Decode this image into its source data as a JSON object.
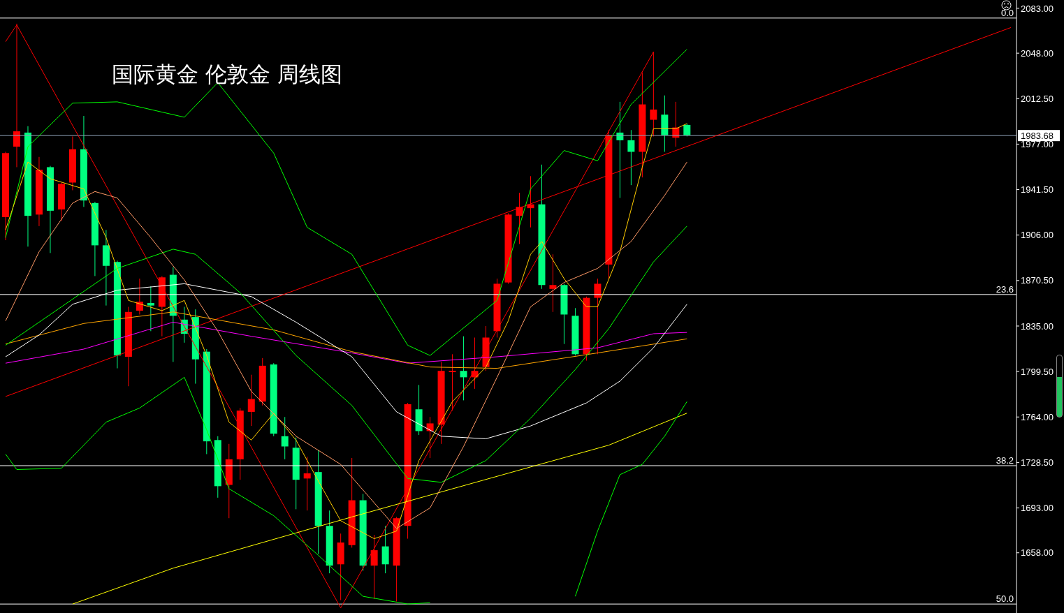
{
  "chart_data": {
    "type": "candlestick",
    "title": "国际黄金 伦敦金 周线图",
    "tick_labels": "y",
    "categories": [
      null,
      null,
      null,
      null,
      null,
      null,
      null,
      null,
      null,
      null,
      null,
      null,
      null,
      null,
      null,
      null,
      null,
      null,
      null,
      null,
      null,
      null,
      null,
      null,
      null,
      null,
      null,
      null,
      null,
      null,
      null,
      null,
      null,
      null,
      null,
      null,
      null,
      null,
      null,
      null,
      null,
      null,
      null,
      null,
      null,
      null,
      null,
      null,
      null,
      null,
      null,
      null,
      null,
      null,
      null,
      null,
      null,
      null,
      null,
      null,
      null,
      null,
      null,
      null,
      null,
      null,
      null,
      null,
      null,
      null,
      null,
      null,
      null,
      null,
      null,
      null,
      null,
      null,
      null,
      null,
      null,
      null,
      null,
      null,
      null,
      null,
      null,
      null,
      null,
      null,
      null
    ],
    "ohlc": [
      [
        1920,
        1971,
        1902,
        1970
      ],
      [
        1975,
        2071,
        1959,
        1987
      ],
      [
        1986,
        1991,
        1897,
        1921
      ],
      [
        1922,
        1967,
        1913,
        1957
      ],
      [
        1959,
        1960,
        1892,
        1925
      ],
      [
        1926,
        1947,
        1917,
        1946
      ],
      [
        1947,
        1983,
        1941,
        1973
      ],
      [
        1973,
        1999,
        1928,
        1933
      ],
      [
        1931,
        1932,
        1874,
        1898
      ],
      [
        1898,
        1910,
        1851,
        1882
      ],
      [
        1885,
        1886,
        1802,
        1812
      ],
      [
        1811,
        1850,
        1788,
        1846
      ],
      [
        1847,
        1872,
        1844,
        1854
      ],
      [
        1853,
        1866,
        1831,
        1851
      ],
      [
        1850,
        1874,
        1827,
        1873
      ],
      [
        1875,
        1881,
        1807,
        1843
      ],
      [
        1840,
        1850,
        1822,
        1829
      ],
      [
        1842,
        1848,
        1790,
        1809
      ],
      [
        1815,
        1817,
        1735,
        1745
      ],
      [
        1746,
        1749,
        1701,
        1710
      ],
      [
        1711,
        1743,
        1685,
        1731
      ],
      [
        1731,
        1771,
        1715,
        1769
      ],
      [
        1768,
        1797,
        1757,
        1778
      ],
      [
        1776,
        1810,
        1773,
        1804
      ],
      [
        1805,
        1806,
        1749,
        1751
      ],
      [
        1749,
        1764,
        1731,
        1741
      ],
      [
        1740,
        1748,
        1692,
        1715
      ],
      [
        1716,
        1733,
        1691,
        1720
      ],
      [
        1721,
        1738,
        1657,
        1679
      ],
      [
        1679,
        1691,
        1642,
        1648
      ],
      [
        1649,
        1673,
        1621,
        1666
      ],
      [
        1664,
        1732,
        1662,
        1699
      ],
      [
        1699,
        1704,
        1644,
        1648
      ],
      [
        1648,
        1672,
        1622,
        1660
      ],
      [
        1663,
        1679,
        1642,
        1649
      ],
      [
        1648,
        1686,
        1620,
        1685
      ],
      [
        1679,
        1775,
        1669,
        1774
      ],
      [
        1770,
        1789,
        1750,
        1753
      ],
      [
        1753,
        1764,
        1732,
        1759
      ],
      [
        1758,
        1807,
        1743,
        1800
      ],
      [
        1799,
        1813,
        1769,
        1800
      ],
      [
        1800,
        1827,
        1777,
        1795
      ],
      [
        1795,
        1826,
        1786,
        1800
      ],
      [
        1803,
        1835,
        1800,
        1826
      ],
      [
        1831,
        1872,
        1826,
        1868
      ],
      [
        1869,
        1923,
        1868,
        1922
      ],
      [
        1921,
        1939,
        1899,
        1928
      ],
      [
        1927,
        1952,
        1912,
        1930
      ],
      [
        1930,
        1961,
        1864,
        1867
      ],
      [
        1864,
        1891,
        1846,
        1867
      ],
      [
        1867,
        1868,
        1821,
        1844
      ],
      [
        1843,
        1849,
        1812,
        1813
      ],
      [
        1813,
        1858,
        1808,
        1857
      ],
      [
        1857,
        1872,
        1813,
        1868
      ],
      [
        1883,
        1988,
        1872,
        1984
      ],
      [
        1986,
        2010,
        1935,
        1980
      ],
      [
        1980,
        1988,
        1945,
        1971
      ],
      [
        1971,
        2033,
        1951,
        2008
      ],
      [
        1996,
        2049,
        1983,
        2004
      ],
      [
        2000,
        2015,
        1971,
        1984
      ],
      [
        1982,
        2010,
        1975,
        1990
      ],
      [
        1992,
        1993,
        1983,
        1984
      ],
      null,
      null,
      null,
      null,
      null,
      null,
      null,
      null,
      null,
      null,
      null,
      null,
      null,
      null,
      null,
      null,
      null,
      null,
      null,
      null,
      null,
      null,
      null,
      null,
      null,
      null,
      null,
      null,
      null
    ],
    "colors": [
      "#ff0000",
      "#ff0000",
      "#00ff80",
      "#ff0000",
      "#00ff80",
      "#ff0000",
      "#ff0000",
      "#00ff80",
      "#00ff80",
      "#00ff80",
      "#00ff80",
      "#ff0000",
      "#ff0000",
      "#00ff80",
      "#ff0000",
      "#00ff80",
      "#00ff80",
      "#00ff80",
      "#00ff80",
      "#00ff80",
      "#ff0000",
      "#ff0000",
      "#ff0000",
      "#ff0000",
      "#00ff80",
      "#00ff80",
      "#00ff80",
      "#ff0000",
      "#00ff80",
      "#00ff80",
      "#ff0000",
      "#ff0000",
      "#00ff80",
      "#ff0000",
      "#00ff80",
      "#ff0000",
      "#ff0000",
      "#00ff80",
      "#ff0000",
      "#ff0000",
      "#ff0000",
      "#00ff80",
      "#ff0000",
      "#ff0000",
      "#ff0000",
      "#ff0000",
      "#ff0000",
      "#ff0000",
      "#00ff80",
      "#ff0000",
      "#00ff80",
      "#00ff80",
      "#ff0000",
      "#ff0000",
      "#ff0000",
      "#00ff80",
      "#00ff80",
      "#ff0000",
      "#ff0000",
      "#00ff80",
      "#ff0000",
      "#00ff80",
      null,
      null,
      null,
      null,
      null,
      null,
      null,
      null,
      null,
      null,
      null,
      null,
      null,
      null,
      null,
      null,
      null,
      null,
      null,
      null,
      null,
      null,
      null,
      null,
      null,
      null,
      null,
      null,
      null
    ],
    "series": [
      {
        "type": "line",
        "color": "#ff0000",
        "values": [
          2057,
          2070,
          null,
          null,
          null,
          null,
          null,
          null,
          null,
          null,
          null,
          null,
          null,
          null,
          null,
          null,
          null,
          null,
          null,
          null,
          null,
          null,
          null,
          null,
          null,
          null,
          null,
          null,
          null,
          null,
          1615,
          null,
          null,
          null,
          null,
          null,
          null,
          null,
          null,
          null,
          null,
          null,
          null,
          null,
          null,
          null,
          null,
          null,
          null,
          null,
          null,
          null,
          null,
          null,
          null,
          null,
          null,
          null,
          2049,
          null,
          null,
          null,
          null,
          null,
          null,
          null,
          null,
          null,
          null,
          null,
          null,
          null,
          null,
          null,
          null,
          null,
          null,
          null,
          null,
          null,
          null,
          null,
          null,
          null,
          null,
          null,
          null,
          null,
          null,
          null,
          null
        ]
      },
      {
        "type": "line",
        "color": "#ff0000",
        "values": [
          1780,
          null,
          null,
          null,
          null,
          null,
          null,
          null,
          null,
          null,
          null,
          null,
          null,
          null,
          null,
          null,
          null,
          null,
          null,
          null,
          null,
          null,
          null,
          null,
          null,
          null,
          null,
          null,
          null,
          null,
          null,
          null,
          null,
          null,
          null,
          null,
          null,
          null,
          null,
          null,
          null,
          null,
          null,
          null,
          null,
          null,
          null,
          null,
          null,
          null,
          null,
          null,
          null,
          null,
          null,
          null,
          null,
          null,
          null,
          null,
          null,
          null,
          null,
          null,
          null,
          null,
          null,
          null,
          null,
          null,
          null,
          null,
          null,
          null,
          null,
          null,
          null,
          null,
          null,
          null,
          null,
          null,
          null,
          null,
          null,
          null,
          null,
          null,
          null,
          null,
          2068
        ]
      },
      {
        "type": "line",
        "color": "#ffff00",
        "values": [
          null,
          null,
          null,
          null,
          null,
          null,
          1618,
          null,
          null,
          null,
          null,
          null,
          null,
          null,
          null,
          1646,
          null,
          null,
          null,
          null,
          null,
          null,
          null,
          null,
          null,
          null,
          null,
          null,
          null,
          null,
          null,
          1686,
          null,
          null,
          null,
          null,
          null,
          null,
          null,
          null,
          null,
          null,
          null,
          null,
          null,
          null,
          null,
          1725,
          null,
          null,
          null,
          null,
          null,
          null,
          1742,
          null,
          null,
          null,
          null,
          null,
          null,
          1767,
          null,
          null,
          null,
          null,
          null,
          null,
          null,
          null,
          null,
          null,
          null,
          null,
          null,
          null,
          null,
          null,
          null,
          null,
          null,
          null,
          null,
          null,
          null,
          null,
          null,
          null,
          null,
          null,
          null
        ]
      },
      {
        "type": "line",
        "color": "#ff00ff",
        "values": [
          1806,
          null,
          null,
          null,
          null,
          null,
          null,
          1817,
          null,
          null,
          null,
          null,
          null,
          null,
          null,
          1838,
          null,
          null,
          null,
          null,
          null,
          null,
          1827,
          null,
          null,
          null,
          null,
          null,
          null,
          null,
          null,
          1814,
          null,
          null,
          null,
          null,
          1806,
          null,
          null,
          null,
          null,
          null,
          null,
          null,
          1811,
          null,
          null,
          null,
          null,
          null,
          null,
          null,
          null,
          1818,
          null,
          null,
          null,
          null,
          1829,
          null,
          null,
          1830,
          null,
          null,
          null,
          null,
          null,
          null,
          null,
          null,
          null,
          null,
          null,
          null,
          null,
          null,
          null,
          null,
          null,
          null,
          null,
          null,
          null,
          null,
          null,
          null,
          null,
          null,
          null,
          null,
          null
        ]
      },
      {
        "type": "line",
        "color": "#ffa500",
        "values": [
          1821,
          null,
          null,
          null,
          null,
          null,
          null,
          1837,
          null,
          null,
          null,
          null,
          null,
          null,
          null,
          1846,
          null,
          null,
          null,
          null,
          null,
          null,
          null,
          null,
          1832,
          null,
          null,
          null,
          null,
          null,
          null,
          1815,
          null,
          null,
          null,
          null,
          null,
          null,
          1803,
          null,
          null,
          null,
          null,
          null,
          1802,
          null,
          null,
          null,
          null,
          null,
          null,
          null,
          null,
          1814,
          null,
          null,
          null,
          null,
          null,
          null,
          null,
          1825,
          null,
          null,
          null,
          null,
          null,
          null,
          null,
          null,
          null,
          null,
          null,
          null,
          null,
          null,
          null,
          null,
          null,
          null,
          null,
          null,
          null,
          null,
          null,
          null,
          null,
          null,
          null,
          null,
          null
        ]
      },
      {
        "type": "line",
        "color": "#ffffff",
        "values": [
          1811,
          null,
          null,
          1828,
          null,
          null,
          1852,
          null,
          null,
          null,
          1863,
          null,
          null,
          null,
          null,
          null,
          1868,
          null,
          null,
          null,
          null,
          null,
          1858,
          null,
          null,
          null,
          1838,
          null,
          null,
          null,
          null,
          1811,
          null,
          null,
          null,
          1768,
          null,
          null,
          null,
          1749,
          null,
          null,
          null,
          1747,
          null,
          null,
          null,
          1757,
          null,
          null,
          null,
          null,
          1775,
          null,
          null,
          1792,
          null,
          null,
          1818,
          null,
          null,
          1852,
          null,
          null,
          null,
          null,
          null,
          null,
          null,
          null,
          null,
          null,
          null,
          null,
          null,
          null,
          null,
          null,
          null,
          null,
          null,
          null,
          null,
          null,
          null,
          null,
          null,
          null,
          null,
          null,
          null
        ]
      },
      {
        "type": "line",
        "color": "#00ff00",
        "values": [
          1904,
          null,
          1975,
          null,
          null,
          null,
          2009,
          null,
          null,
          null,
          2010,
          null,
          null,
          null,
          null,
          null,
          1998,
          null,
          null,
          2025,
          null,
          null,
          null,
          null,
          1970,
          null,
          null,
          1912,
          null,
          null,
          null,
          1891,
          null,
          null,
          null,
          null,
          1820,
          null,
          1812,
          null,
          null,
          null,
          null,
          null,
          1855,
          null,
          null,
          1942,
          null,
          null,
          1972,
          null,
          null,
          1964,
          null,
          null,
          2008,
          null,
          null,
          null,
          null,
          2051,
          null,
          null,
          null,
          null,
          null,
          null,
          null,
          null,
          null,
          null,
          null,
          null,
          null,
          null,
          null,
          null,
          null,
          null,
          null,
          null,
          null,
          null,
          null,
          null,
          null,
          null,
          null,
          null,
          null
        ]
      },
      {
        "type": "line",
        "color": "#00ff00",
        "values": [
          1820,
          null,
          null,
          null,
          null,
          1850,
          null,
          null,
          null,
          null,
          1880,
          null,
          null,
          null,
          null,
          1895,
          null,
          1891,
          null,
          null,
          null,
          1861,
          null,
          null,
          null,
          null,
          1812,
          null,
          null,
          null,
          null,
          1773,
          null,
          null,
          null,
          null,
          1716,
          null,
          null,
          1713,
          null,
          null,
          null,
          1730,
          null,
          null,
          null,
          1763,
          null,
          null,
          null,
          1801,
          null,
          null,
          1833,
          null,
          null,
          null,
          1885,
          null,
          null,
          1913,
          null,
          null,
          null,
          null,
          null,
          null,
          null,
          null,
          null,
          null,
          null,
          null,
          null,
          null,
          null,
          null,
          null,
          null,
          null,
          null,
          null,
          null,
          null,
          null,
          null,
          null,
          null,
          null,
          null
        ]
      },
      {
        "type": "line",
        "color": "#00ff00",
        "values": [
          1735,
          1723,
          null,
          null,
          null,
          1724,
          null,
          null,
          null,
          1760,
          null,
          null,
          1771,
          null,
          null,
          null,
          1795,
          null,
          1754,
          null,
          1708,
          null,
          null,
          null,
          1687,
          null,
          null,
          null,
          1656,
          null,
          null,
          null,
          1624,
          null,
          null,
          null,
          1618,
          null,
          1619,
          null,
          null,
          null,
          null,
          null,
          null,
          null,
          null,
          null,
          null,
          null,
          null,
          null,
          null,
          null,
          null,
          null,
          null,
          null,
          null,
          null,
          null,
          null,
          null,
          null,
          null,
          null,
          null,
          null,
          null,
          null,
          null,
          null,
          null,
          null,
          null,
          null,
          null,
          null,
          null,
          null,
          null,
          null,
          null,
          null,
          null,
          null,
          null,
          null,
          null,
          null,
          null
        ]
      },
      {
        "type": "line",
        "color": "#00ff00",
        "values": [
          null,
          null,
          null,
          null,
          null,
          null,
          null,
          null,
          null,
          null,
          null,
          null,
          null,
          null,
          null,
          null,
          null,
          null,
          null,
          null,
          null,
          null,
          null,
          null,
          null,
          null,
          null,
          null,
          null,
          null,
          null,
          null,
          null,
          null,
          null,
          null,
          null,
          null,
          null,
          null,
          null,
          null,
          null,
          null,
          null,
          null,
          null,
          null,
          null,
          null,
          null,
          1624,
          null,
          1675,
          null,
          1719,
          null,
          1727,
          null,
          1749,
          null,
          1776,
          null,
          null,
          null,
          null,
          null,
          null,
          null,
          null,
          null,
          null,
          null,
          null,
          null,
          null,
          null,
          null,
          null,
          null,
          null,
          null,
          null,
          null,
          null,
          null,
          null,
          null,
          null,
          null,
          null
        ]
      },
      {
        "type": "line",
        "color": "#ffcc00",
        "values": [
          1910,
          null,
          1963,
          null,
          1950,
          null,
          null,
          1942,
          null,
          1904,
          null,
          1855,
          null,
          null,
          1847,
          null,
          1855,
          null,
          1812,
          null,
          1760,
          null,
          1746,
          null,
          1767,
          null,
          1746,
          null,
          1714,
          null,
          1683,
          null,
          null,
          1669,
          null,
          1675,
          null,
          1730,
          null,
          null,
          1776,
          null,
          null,
          1803,
          null,
          1839,
          null,
          1891,
          1901,
          null,
          1872,
          null,
          1850,
          1850,
          null,
          1893,
          null,
          1959,
          1989,
          null,
          1989,
          1993,
          null,
          null,
          null,
          null,
          null,
          null,
          null,
          null,
          null,
          null,
          null,
          null,
          null,
          null,
          null,
          null,
          null,
          null,
          null,
          null,
          null,
          null,
          null,
          null,
          null,
          null,
          null,
          null,
          null
        ]
      },
      {
        "type": "line",
        "color": "#ff9966",
        "values": [
          1839,
          null,
          null,
          1893,
          null,
          null,
          1931,
          null,
          1940,
          null,
          1935,
          null,
          null,
          1904,
          null,
          null,
          1871,
          null,
          null,
          1831,
          null,
          null,
          1784,
          null,
          null,
          null,
          1749,
          null,
          null,
          null,
          1727,
          null,
          null,
          1697,
          null,
          1677,
          null,
          null,
          1693,
          null,
          null,
          1741,
          null,
          null,
          1795,
          null,
          null,
          1850,
          null,
          null,
          1869,
          null,
          null,
          1880,
          null,
          null,
          1901,
          null,
          null,
          1937,
          null,
          1963,
          null,
          null,
          null,
          null,
          null,
          null,
          null,
          null,
          null,
          null,
          null,
          null,
          null,
          null,
          null,
          null,
          null,
          null,
          null,
          null,
          null,
          null,
          null,
          null,
          null,
          null,
          null,
          null,
          null
        ]
      }
    ],
    "ylim": [
      1611,
      2089.5
    ],
    "yticks": [
      {
        "value": 2083,
        "label": "2083.00"
      },
      {
        "value": 2048,
        "label": "2048.00"
      },
      {
        "value": 2012.5,
        "label": "2012.50"
      },
      {
        "value": 1977,
        "label": "1977.00"
      },
      {
        "value": 1941.5,
        "label": "1941.50"
      },
      {
        "value": 1906,
        "label": "1906.00"
      },
      {
        "value": 1870.5,
        "label": "1870.50"
      },
      {
        "value": 1835,
        "label": "1835.00"
      },
      {
        "value": 1799.5,
        "label": "1799.50"
      },
      {
        "value": 1764,
        "label": "1764.00"
      },
      {
        "value": 1728.5,
        "label": "1728.50"
      },
      {
        "value": 1693,
        "label": "1693.00"
      },
      {
        "value": 1658,
        "label": "1658.00"
      }
    ],
    "ref_lines": [
      {
        "axis": "y",
        "value": 2075.4,
        "color": "#ffffff"
      },
      {
        "axis": "y",
        "value": 1859.6,
        "color": "#ffffff"
      },
      {
        "axis": "y",
        "value": 1726,
        "color": "#ffffff"
      },
      {
        "axis": "y",
        "value": 1618,
        "color": "#ffffff"
      },
      {
        "axis": "y",
        "value": 1983.68,
        "label": "1983.68",
        "color": "#8ea0b5"
      }
    ],
    "annotations": [
      {
        "text": "0.0",
        "y": 2075.4
      },
      {
        "text": "23.6",
        "y": 1859.6
      },
      {
        "text": "38.2",
        "y": 1726
      },
      {
        "text": "50.0",
        "y": 1618
      }
    ]
  }
}
